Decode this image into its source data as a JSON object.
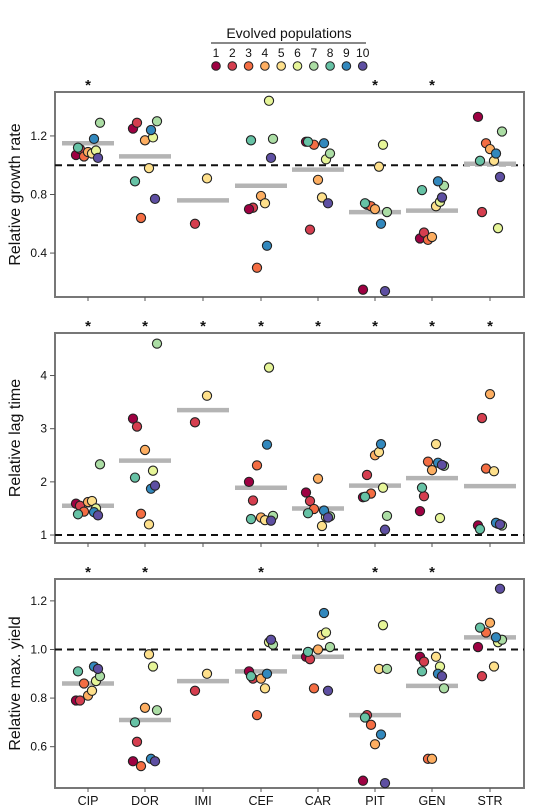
{
  "legend": {
    "title": "Evolved populations",
    "entries": [
      "1",
      "2",
      "3",
      "4",
      "5",
      "6",
      "7",
      "8",
      "9",
      "10"
    ],
    "colors": [
      "#9E0142",
      "#D53E4F",
      "#F46D43",
      "#FDAE61",
      "#FEE08B",
      "#E6F598",
      "#ABDDA4",
      "#66C2A5",
      "#3288BD",
      "#5E4FA2"
    ]
  },
  "mean_color": "#b4b4b4",
  "chart_data": [
    {
      "type": "scatter",
      "ylabel": "Relative growth rate",
      "ylim": [
        0.1,
        1.5
      ],
      "yticks": [
        0.4,
        0.8,
        1.2
      ],
      "reference_line": 1.0,
      "categories": [
        "CIP",
        "DOR",
        "IMI",
        "CEF",
        "CAR",
        "PIT",
        "GEN",
        "STR"
      ],
      "significance": [
        "*",
        "",
        "",
        "",
        "",
        "*",
        "*",
        ""
      ],
      "means": [
        1.15,
        1.06,
        0.76,
        0.86,
        0.97,
        0.68,
        0.69,
        1.01
      ],
      "points": [
        [
          [
            1,
            1.07
          ],
          [
            2,
            1.11
          ],
          [
            3,
            1.06
          ],
          [
            4,
            1.09
          ],
          [
            5,
            1.08
          ],
          [
            6,
            1.1
          ],
          [
            7,
            1.29
          ],
          [
            8,
            1.12
          ],
          [
            9,
            1.18
          ],
          [
            10,
            1.05
          ]
        ],
        [
          [
            1,
            1.25
          ],
          [
            2,
            1.29
          ],
          [
            3,
            0.64
          ],
          [
            4,
            1.17
          ],
          [
            5,
            0.98
          ],
          [
            6,
            1.19
          ],
          [
            7,
            1.3
          ],
          [
            8,
            0.89
          ],
          [
            9,
            1.24
          ],
          [
            10,
            0.77
          ]
        ],
        [
          [
            2,
            0.6
          ],
          [
            5,
            0.91
          ]
        ],
        [
          [
            2,
            0.71
          ],
          [
            3,
            0.3
          ],
          [
            4,
            0.79
          ],
          [
            5,
            0.74
          ],
          [
            6,
            1.44
          ],
          [
            7,
            1.18
          ],
          [
            8,
            1.17
          ],
          [
            9,
            0.45
          ],
          [
            10,
            1.05
          ],
          [
            1,
            0.7
          ]
        ],
        [
          [
            1,
            1.16
          ],
          [
            2,
            0.56
          ],
          [
            3,
            1.14
          ],
          [
            4,
            0.9
          ],
          [
            5,
            0.78
          ],
          [
            6,
            1.04
          ],
          [
            7,
            1.08
          ],
          [
            8,
            1.16
          ],
          [
            9,
            1.15
          ],
          [
            10,
            0.74
          ]
        ],
        [
          [
            1,
            0.15
          ],
          [
            2,
            0.73
          ],
          [
            3,
            0.72
          ],
          [
            4,
            0.7
          ],
          [
            5,
            0.99
          ],
          [
            6,
            1.14
          ],
          [
            7,
            0.68
          ],
          [
            8,
            0.74
          ],
          [
            9,
            0.6
          ],
          [
            10,
            0.14
          ]
        ],
        [
          [
            1,
            0.5
          ],
          [
            2,
            0.54
          ],
          [
            3,
            0.49
          ],
          [
            4,
            0.51
          ],
          [
            5,
            0.72
          ],
          [
            6,
            0.75
          ],
          [
            7,
            0.86
          ],
          [
            8,
            0.83
          ],
          [
            9,
            0.89
          ],
          [
            10,
            0.78
          ]
        ],
        [
          [
            1,
            1.33
          ],
          [
            2,
            0.68
          ],
          [
            3,
            1.15
          ],
          [
            4,
            1.11
          ],
          [
            5,
            1.03
          ],
          [
            6,
            0.57
          ],
          [
            7,
            1.23
          ],
          [
            8,
            1.03
          ],
          [
            9,
            1.08
          ],
          [
            10,
            0.92
          ]
        ]
      ]
    },
    {
      "type": "scatter",
      "ylabel": "Relative lag time",
      "ylim": [
        0.85,
        4.8
      ],
      "yticks": [
        1,
        2,
        3,
        4
      ],
      "reference_line": 1.0,
      "categories": [
        "CIP",
        "DOR",
        "IMI",
        "CEF",
        "CAR",
        "PIT",
        "GEN",
        "STR"
      ],
      "significance": [
        "*",
        "*",
        "*",
        "*",
        "*",
        "*",
        "*",
        "*"
      ],
      "means": [
        1.55,
        2.4,
        3.35,
        1.89,
        1.5,
        1.93,
        2.07,
        1.92
      ],
      "points": [
        [
          [
            1,
            1.59
          ],
          [
            2,
            1.55
          ],
          [
            3,
            1.44
          ],
          [
            4,
            1.62
          ],
          [
            5,
            1.64
          ],
          [
            6,
            1.5
          ],
          [
            7,
            2.33
          ],
          [
            8,
            1.39
          ],
          [
            9,
            1.43
          ],
          [
            10,
            1.37
          ]
        ],
        [
          [
            1,
            3.19
          ],
          [
            2,
            3.04
          ],
          [
            3,
            1.4
          ],
          [
            4,
            2.6
          ],
          [
            5,
            1.2
          ],
          [
            6,
            2.21
          ],
          [
            7,
            4.6
          ],
          [
            8,
            2.08
          ],
          [
            9,
            1.87
          ],
          [
            10,
            1.93
          ]
        ],
        [
          [
            2,
            3.12
          ],
          [
            5,
            3.62
          ]
        ],
        [
          [
            1,
            2.0
          ],
          [
            2,
            1.65
          ],
          [
            3,
            2.31
          ],
          [
            4,
            1.33
          ],
          [
            5,
            1.28
          ],
          [
            6,
            4.15
          ],
          [
            7,
            1.36
          ],
          [
            8,
            1.3
          ],
          [
            9,
            2.7
          ],
          [
            10,
            1.27
          ]
        ],
        [
          [
            1,
            1.8
          ],
          [
            2,
            1.64
          ],
          [
            3,
            1.49
          ],
          [
            4,
            2.06
          ],
          [
            5,
            1.17
          ],
          [
            6,
            1.34
          ],
          [
            7,
            1.35
          ],
          [
            8,
            1.41
          ],
          [
            9,
            1.46
          ],
          [
            10,
            1.33
          ]
        ],
        [
          [
            1,
            1.71
          ],
          [
            2,
            2.13
          ],
          [
            3,
            1.78
          ],
          [
            4,
            2.5
          ],
          [
            5,
            2.56
          ],
          [
            6,
            1.89
          ],
          [
            7,
            1.36
          ],
          [
            8,
            1.72
          ],
          [
            9,
            2.71
          ],
          [
            10,
            1.1
          ]
        ],
        [
          [
            1,
            1.45
          ],
          [
            2,
            1.73
          ],
          [
            3,
            2.38
          ],
          [
            4,
            2.22
          ],
          [
            5,
            2.71
          ],
          [
            6,
            1.32
          ],
          [
            7,
            2.3
          ],
          [
            8,
            1.89
          ],
          [
            9,
            2.36
          ],
          [
            10,
            2.32
          ]
        ],
        [
          [
            1,
            1.18
          ],
          [
            2,
            3.2
          ],
          [
            3,
            2.25
          ],
          [
            4,
            3.65
          ],
          [
            5,
            2.2
          ],
          [
            6,
            1.21
          ],
          [
            7,
            1.18
          ],
          [
            8,
            1.11
          ],
          [
            9,
            1.23
          ],
          [
            10,
            1.2
          ]
        ]
      ]
    },
    {
      "type": "scatter",
      "ylabel": "Relative max. yield",
      "ylim": [
        0.43,
        1.29
      ],
      "yticks": [
        0.6,
        0.8,
        1.0,
        1.2
      ],
      "reference_line": 1.0,
      "categories": [
        "CIP",
        "DOR",
        "IMI",
        "CEF",
        "CAR",
        "PIT",
        "GEN",
        "STR"
      ],
      "significance": [
        "*",
        "*",
        "",
        "*",
        "",
        "*",
        "*",
        ""
      ],
      "means": [
        0.86,
        0.71,
        0.87,
        0.91,
        0.97,
        0.73,
        0.85,
        1.05
      ],
      "points": [
        [
          [
            1,
            0.79
          ],
          [
            2,
            0.79
          ],
          [
            3,
            0.86
          ],
          [
            4,
            0.81
          ],
          [
            5,
            0.83
          ],
          [
            6,
            0.87
          ],
          [
            7,
            0.89
          ],
          [
            8,
            0.91
          ],
          [
            9,
            0.93
          ],
          [
            10,
            0.92
          ]
        ],
        [
          [
            1,
            0.54
          ],
          [
            2,
            0.62
          ],
          [
            3,
            0.52
          ],
          [
            4,
            0.76
          ],
          [
            5,
            0.98
          ],
          [
            6,
            0.93
          ],
          [
            7,
            0.75
          ],
          [
            8,
            0.7
          ],
          [
            9,
            0.55
          ],
          [
            10,
            0.54
          ]
        ],
        [
          [
            2,
            0.83
          ],
          [
            5,
            0.9
          ]
        ],
        [
          [
            1,
            0.91
          ],
          [
            2,
            0.88
          ],
          [
            3,
            0.73
          ],
          [
            4,
            0.88
          ],
          [
            5,
            0.84
          ],
          [
            6,
            1.03
          ],
          [
            7,
            1.02
          ],
          [
            8,
            0.89
          ],
          [
            9,
            0.9
          ],
          [
            10,
            1.04
          ]
        ],
        [
          [
            1,
            0.97
          ],
          [
            2,
            0.96
          ],
          [
            3,
            0.84
          ],
          [
            4,
            1.0
          ],
          [
            5,
            1.06
          ],
          [
            6,
            1.07
          ],
          [
            7,
            1.01
          ],
          [
            8,
            0.99
          ],
          [
            9,
            1.15
          ],
          [
            10,
            0.83
          ]
        ],
        [
          [
            1,
            0.46
          ],
          [
            2,
            0.73
          ],
          [
            3,
            0.69
          ],
          [
            4,
            0.61
          ],
          [
            5,
            0.92
          ],
          [
            6,
            1.1
          ],
          [
            7,
            0.92
          ],
          [
            8,
            0.72
          ],
          [
            9,
            0.65
          ],
          [
            10,
            0.45
          ]
        ],
        [
          [
            1,
            0.97
          ],
          [
            2,
            0.95
          ],
          [
            3,
            0.55
          ],
          [
            4,
            0.55
          ],
          [
            5,
            0.97
          ],
          [
            6,
            0.93
          ],
          [
            7,
            0.84
          ],
          [
            8,
            0.91
          ],
          [
            9,
            0.9
          ],
          [
            10,
            0.89
          ]
        ],
        [
          [
            1,
            1.01
          ],
          [
            2,
            0.89
          ],
          [
            3,
            1.07
          ],
          [
            4,
            1.11
          ],
          [
            5,
            0.93
          ],
          [
            6,
            1.03
          ],
          [
            7,
            1.04
          ],
          [
            8,
            1.09
          ],
          [
            9,
            1.05
          ],
          [
            10,
            1.25
          ]
        ]
      ]
    }
  ]
}
